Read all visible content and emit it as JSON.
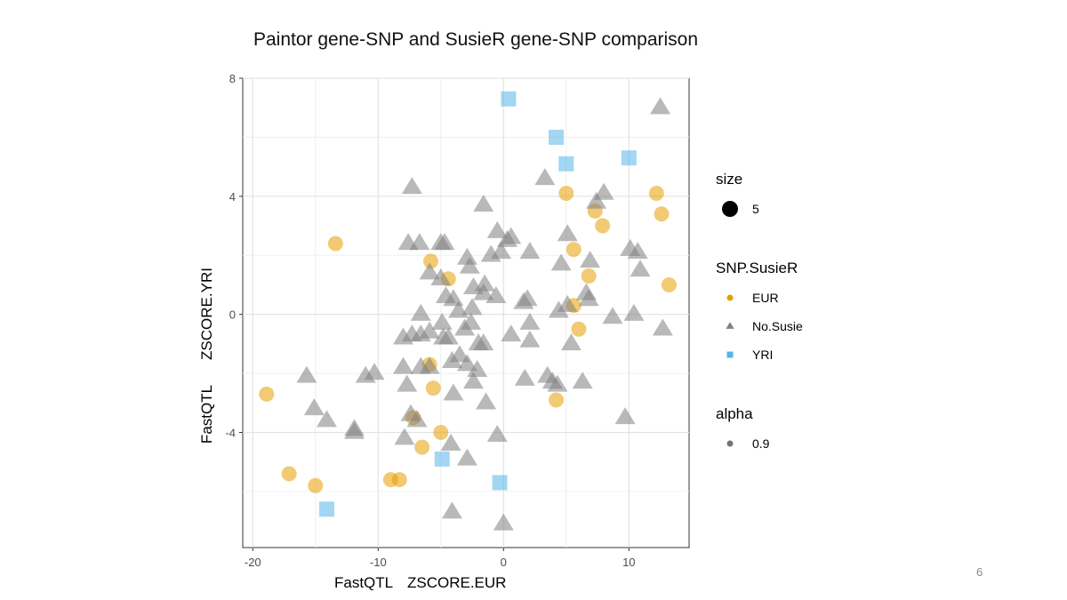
{
  "slide": {
    "title": "Paintor gene-SNP and SusieR gene-SNP comparison",
    "page_number": "6"
  },
  "chart_data": {
    "type": "scatter",
    "title": "Paintor gene-SNP and SusieR gene-SNP comparison",
    "xlabel_prefix": "FastQTL",
    "xlabel": "ZSCORE.EUR",
    "ylabel_prefix": "FastQTL",
    "ylabel": "ZSCORE.YRI",
    "xlim": [
      -20.8,
      14.8
    ],
    "ylim": [
      -7.9,
      8.0
    ],
    "x_ticks": [
      -20,
      -10,
      0,
      10
    ],
    "x_tick_labels": [
      "-20",
      "-10",
      "0",
      "10"
    ],
    "y_ticks": [
      -4,
      0,
      4,
      8
    ],
    "y_tick_labels": [
      "-4",
      "0",
      "4",
      "8"
    ],
    "grid": true,
    "legend_position": "right",
    "colors": {
      "EUR": "#E69F00",
      "No.Susie": "#808080",
      "YRI": "#56B4E9"
    },
    "marker_alpha": 0.55,
    "legends": [
      {
        "title": "size",
        "items": [
          {
            "label": "5",
            "shape": "circle",
            "color": "#000000"
          }
        ]
      },
      {
        "title": "SNP.SusieR",
        "items": [
          {
            "label": "EUR",
            "shape": "circle",
            "color": "#E69F00"
          },
          {
            "label": "No.Susie",
            "shape": "triangle",
            "color": "#808080"
          },
          {
            "label": "YRI",
            "shape": "square",
            "color": "#56B4E9"
          }
        ]
      },
      {
        "title": "alpha",
        "items": [
          {
            "label": "0.9",
            "shape": "circle",
            "color": "#000000"
          }
        ]
      }
    ],
    "series": [
      {
        "name": "EUR",
        "shape": "circle",
        "points": [
          [
            -13.4,
            2.4
          ],
          [
            -5.8,
            1.8
          ],
          [
            -4.4,
            1.2
          ],
          [
            5.0,
            4.1
          ],
          [
            7.3,
            3.5
          ],
          [
            7.9,
            3.0
          ],
          [
            5.6,
            2.2
          ],
          [
            6.8,
            1.3
          ],
          [
            12.2,
            4.1
          ],
          [
            12.6,
            3.4
          ],
          [
            13.2,
            1.0
          ],
          [
            5.6,
            0.3
          ],
          [
            6.0,
            -0.5
          ],
          [
            -5.9,
            -1.7
          ],
          [
            -5.6,
            -2.5
          ],
          [
            4.2,
            -2.9
          ],
          [
            -18.9,
            -2.7
          ],
          [
            -7.2,
            -3.5
          ],
          [
            -5.0,
            -4.0
          ],
          [
            -6.5,
            -4.5
          ],
          [
            -17.1,
            -5.4
          ],
          [
            -15.0,
            -5.8
          ],
          [
            -9.0,
            -5.6
          ],
          [
            -8.3,
            -5.6
          ]
        ]
      },
      {
        "name": "No.Susie",
        "shape": "triangle",
        "points": [
          [
            12.5,
            7.0
          ],
          [
            3.3,
            4.6
          ],
          [
            -7.3,
            4.3
          ],
          [
            -1.6,
            3.7
          ],
          [
            7.4,
            3.8
          ],
          [
            8.0,
            4.1
          ],
          [
            -7.6,
            2.4
          ],
          [
            -6.7,
            2.4
          ],
          [
            -5.0,
            2.4
          ],
          [
            -4.7,
            2.4
          ],
          [
            -0.5,
            2.8
          ],
          [
            0.6,
            2.6
          ],
          [
            0.3,
            2.5
          ],
          [
            2.1,
            2.1
          ],
          [
            -0.2,
            2.1
          ],
          [
            -1.0,
            2.0
          ],
          [
            5.1,
            2.7
          ],
          [
            10.1,
            2.2
          ],
          [
            10.7,
            2.1
          ],
          [
            -2.9,
            1.9
          ],
          [
            -2.7,
            1.6
          ],
          [
            -5.9,
            1.4
          ],
          [
            -5.0,
            1.2
          ],
          [
            4.6,
            1.7
          ],
          [
            6.9,
            1.8
          ],
          [
            10.9,
            1.5
          ],
          [
            -1.5,
            1.0
          ],
          [
            -2.4,
            0.9
          ],
          [
            -1.6,
            0.7
          ],
          [
            -0.6,
            0.6
          ],
          [
            -4.6,
            0.6
          ],
          [
            -4.0,
            0.5
          ],
          [
            1.9,
            0.5
          ],
          [
            1.6,
            0.4
          ],
          [
            6.6,
            0.7
          ],
          [
            6.8,
            0.5
          ],
          [
            5.1,
            0.3
          ],
          [
            4.4,
            0.1
          ],
          [
            -3.6,
            0.1
          ],
          [
            -2.5,
            0.2
          ],
          [
            -4.9,
            -0.3
          ],
          [
            -2.6,
            -0.3
          ],
          [
            -3.1,
            -0.5
          ],
          [
            -6.6,
            0.0
          ],
          [
            8.7,
            -0.1
          ],
          [
            10.4,
            0.0
          ],
          [
            2.1,
            -0.3
          ],
          [
            -8.0,
            -0.8
          ],
          [
            -7.3,
            -0.7
          ],
          [
            -6.6,
            -0.7
          ],
          [
            -5.9,
            -0.6
          ],
          [
            -4.8,
            -0.8
          ],
          [
            -4.4,
            -0.8
          ],
          [
            0.6,
            -0.7
          ],
          [
            2.1,
            -0.9
          ],
          [
            -2.0,
            -1.0
          ],
          [
            -1.6,
            -1.0
          ],
          [
            -3.5,
            -1.4
          ],
          [
            -4.1,
            -1.6
          ],
          [
            5.4,
            -1.0
          ],
          [
            12.7,
            -0.5
          ],
          [
            -8.0,
            -1.8
          ],
          [
            -6.6,
            -1.8
          ],
          [
            -5.9,
            -1.8
          ],
          [
            -2.9,
            -1.7
          ],
          [
            -2.1,
            -1.9
          ],
          [
            -10.3,
            -2.0
          ],
          [
            -11.0,
            -2.1
          ],
          [
            -15.7,
            -2.1
          ],
          [
            -7.7,
            -2.4
          ],
          [
            -4.0,
            -2.7
          ],
          [
            -2.4,
            -2.3
          ],
          [
            1.7,
            -2.2
          ],
          [
            3.5,
            -2.1
          ],
          [
            3.9,
            -2.3
          ],
          [
            4.3,
            -2.4
          ],
          [
            6.3,
            -2.3
          ],
          [
            -1.4,
            -3.0
          ],
          [
            -15.1,
            -3.2
          ],
          [
            -14.1,
            -3.6
          ],
          [
            -11.9,
            -3.9
          ],
          [
            -11.9,
            -4.0
          ],
          [
            -7.4,
            -3.4
          ],
          [
            -6.9,
            -3.6
          ],
          [
            -7.9,
            -4.2
          ],
          [
            -4.2,
            -4.4
          ],
          [
            -0.5,
            -4.1
          ],
          [
            -2.9,
            -4.9
          ],
          [
            9.7,
            -3.5
          ],
          [
            -4.1,
            -6.7
          ],
          [
            0.0,
            -7.1
          ]
        ]
      },
      {
        "name": "YRI",
        "shape": "square",
        "points": [
          [
            0.4,
            7.3
          ],
          [
            4.2,
            6.0
          ],
          [
            5.0,
            5.1
          ],
          [
            10.0,
            5.3
          ],
          [
            -4.9,
            -4.9
          ],
          [
            -0.3,
            -5.7
          ],
          [
            -14.1,
            -6.6
          ]
        ]
      }
    ]
  }
}
